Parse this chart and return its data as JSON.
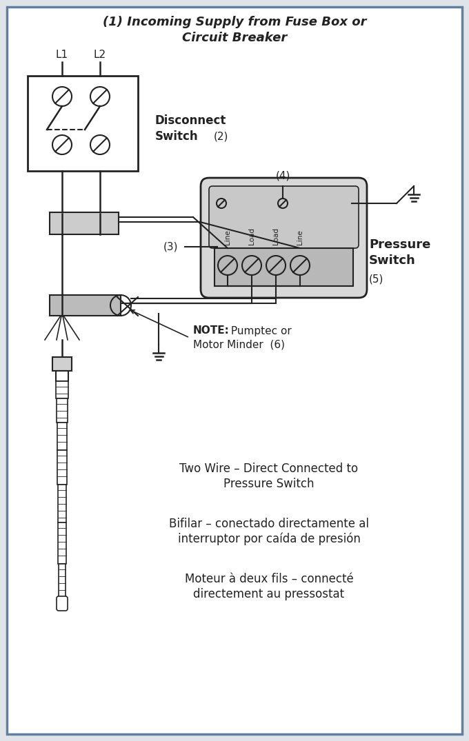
{
  "bg_color": "#e0e4e8",
  "border_color": "#6080a0",
  "line_color": "#222222",
  "title_line1": "(1) Incoming Supply from Fuse Box or",
  "title_line2": "Circuit Breaker",
  "label_L1": "L1",
  "label_L2": "L2",
  "label_disconnect": "Disconnect",
  "label_switch": "Switch",
  "label_num2": "(2)",
  "label_num3": "(3)",
  "label_num4": "(4)",
  "label_pressure": "Pressure",
  "label_pressure2": "Switch",
  "label_num5": "(5)",
  "label_note_bold": "NOTE:",
  "label_note_normal": " Pumptec or",
  "label_note2": "Motor Minder  (6)",
  "text1_line1": "Two Wire – Direct Connected to",
  "text1_line2": "Pressure Switch",
  "text2_line1": "Bifilar – conectado directamente al",
  "text2_line2": "interruptor por caída de presión",
  "text3_line1": "Moteur à deux fils – connecté",
  "text3_line2": "directement au pressostat",
  "ps_labels": [
    "Line",
    "Load",
    "Load",
    "Line"
  ]
}
